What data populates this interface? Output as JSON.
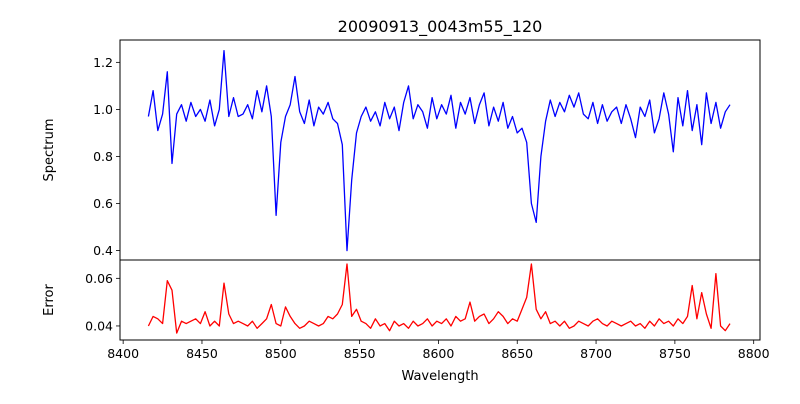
{
  "chart_data": [
    {
      "type": "line",
      "title": "20090913_0043m55_120",
      "xlabel": "",
      "ylabel": "Spectrum",
      "xlim": [
        8398,
        8804
      ],
      "ylim": [
        0.36,
        1.295
      ],
      "yticks": [
        0.4,
        0.6,
        0.8,
        1.0,
        1.2
      ],
      "ytick_labels": [
        "0.4",
        "0.6",
        "0.8",
        "1.0",
        "1.2"
      ],
      "grid": false,
      "color": "#0000ff",
      "x_start": 8416,
      "x_step": 3,
      "values": [
        0.97,
        1.08,
        0.91,
        0.98,
        1.16,
        0.77,
        0.98,
        1.02,
        0.95,
        1.03,
        0.97,
        1.0,
        0.95,
        1.04,
        0.93,
        1.0,
        1.25,
        0.97,
        1.05,
        0.97,
        0.98,
        1.02,
        0.96,
        1.08,
        0.99,
        1.1,
        0.97,
        0.55,
        0.86,
        0.97,
        1.02,
        1.14,
        0.99,
        0.94,
        1.04,
        0.93,
        1.01,
        0.98,
        1.03,
        0.96,
        0.94,
        0.85,
        0.4,
        0.7,
        0.9,
        0.97,
        1.01,
        0.95,
        0.99,
        0.93,
        1.03,
        0.96,
        1.01,
        0.91,
        1.03,
        1.1,
        0.96,
        1.02,
        0.99,
        0.92,
        1.05,
        0.96,
        1.02,
        0.98,
        1.06,
        0.92,
        1.03,
        0.98,
        1.05,
        0.94,
        1.02,
        1.07,
        0.93,
        1.01,
        0.95,
        1.03,
        0.92,
        0.97,
        0.9,
        0.92,
        0.86,
        0.6,
        0.52,
        0.8,
        0.95,
        1.04,
        0.97,
        1.03,
        0.99,
        1.06,
        1.01,
        1.07,
        0.98,
        0.96,
        1.03,
        0.94,
        1.02,
        0.95,
        0.99,
        1.01,
        0.94,
        1.02,
        0.96,
        0.88,
        1.01,
        0.97,
        1.04,
        0.9,
        0.96,
        1.07,
        0.98,
        0.82,
        1.05,
        0.93,
        1.08,
        0.91,
        1.02,
        0.85,
        1.07,
        0.94,
        1.03,
        0.92,
        0.99,
        1.02
      ]
    },
    {
      "type": "line",
      "title": "",
      "xlabel": "Wavelength",
      "ylabel": "Error",
      "xlim": [
        8398,
        8804
      ],
      "ylim": [
        0.0341,
        0.0677
      ],
      "xticks": [
        8400,
        8450,
        8500,
        8550,
        8600,
        8650,
        8700,
        8750,
        8800
      ],
      "xtick_labels": [
        "8400",
        "8450",
        "8500",
        "8550",
        "8600",
        "8650",
        "8700",
        "8750",
        "8800"
      ],
      "yticks": [
        0.04,
        0.06
      ],
      "ytick_labels": [
        "0.04",
        "0.06"
      ],
      "grid": false,
      "color": "#ff0000",
      "x_start": 8416,
      "x_step": 3,
      "values": [
        0.04,
        0.044,
        0.043,
        0.041,
        0.059,
        0.055,
        0.037,
        0.042,
        0.041,
        0.042,
        0.043,
        0.041,
        0.046,
        0.04,
        0.042,
        0.04,
        0.058,
        0.045,
        0.041,
        0.042,
        0.041,
        0.04,
        0.042,
        0.039,
        0.041,
        0.043,
        0.049,
        0.041,
        0.04,
        0.048,
        0.044,
        0.041,
        0.039,
        0.04,
        0.042,
        0.041,
        0.04,
        0.041,
        0.044,
        0.043,
        0.045,
        0.049,
        0.066,
        0.044,
        0.047,
        0.042,
        0.041,
        0.039,
        0.043,
        0.04,
        0.041,
        0.038,
        0.042,
        0.04,
        0.041,
        0.039,
        0.042,
        0.04,
        0.041,
        0.043,
        0.04,
        0.042,
        0.041,
        0.043,
        0.04,
        0.044,
        0.042,
        0.043,
        0.05,
        0.042,
        0.044,
        0.045,
        0.041,
        0.043,
        0.046,
        0.044,
        0.041,
        0.043,
        0.042,
        0.047,
        0.052,
        0.066,
        0.047,
        0.043,
        0.046,
        0.041,
        0.042,
        0.04,
        0.042,
        0.039,
        0.04,
        0.042,
        0.041,
        0.04,
        0.042,
        0.043,
        0.041,
        0.04,
        0.042,
        0.041,
        0.04,
        0.041,
        0.042,
        0.04,
        0.041,
        0.039,
        0.042,
        0.04,
        0.043,
        0.041,
        0.042,
        0.04,
        0.043,
        0.041,
        0.044,
        0.057,
        0.043,
        0.054,
        0.045,
        0.039,
        0.062,
        0.04,
        0.038,
        0.041
      ]
    }
  ]
}
